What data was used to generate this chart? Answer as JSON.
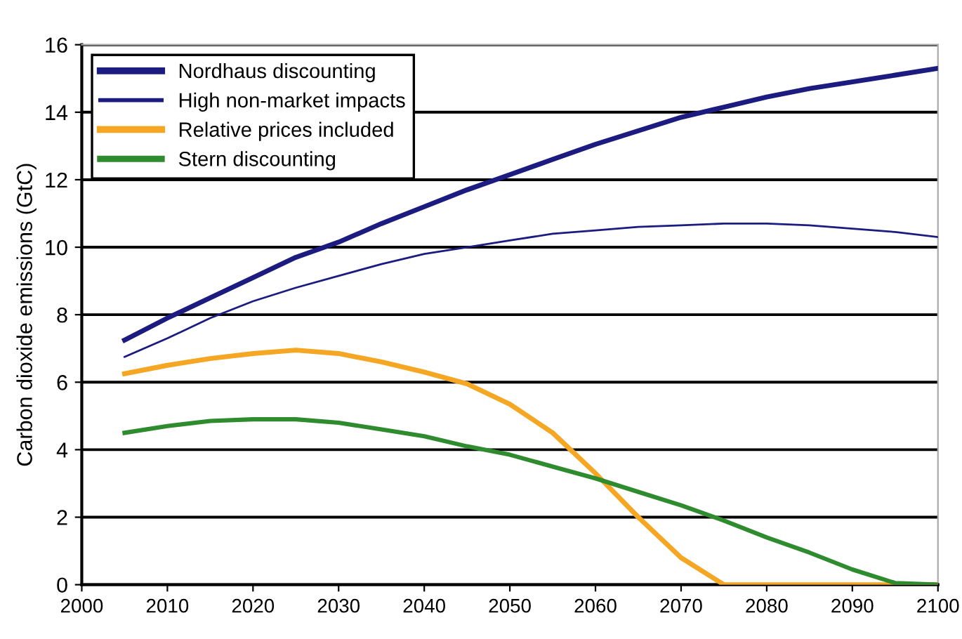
{
  "chart_data": {
    "type": "line",
    "ylabel": "Carbon dioxide emissions (GtC)",
    "x": [
      2005,
      2010,
      2015,
      2020,
      2025,
      2030,
      2035,
      2040,
      2045,
      2050,
      2055,
      2060,
      2065,
      2070,
      2075,
      2080,
      2085,
      2090,
      2095,
      2100
    ],
    "series": [
      {
        "name": "Nordhaus discounting",
        "color": "#1c1c80",
        "values": [
          7.25,
          7.9,
          8.5,
          9.1,
          9.7,
          10.15,
          10.7,
          11.2,
          11.7,
          12.15,
          12.6,
          13.05,
          13.45,
          13.85,
          14.15,
          14.45,
          14.7,
          14.9,
          15.1,
          15.3
        ]
      },
      {
        "name": "High non-market impacts",
        "color": "#1c1c80",
        "values": [
          6.75,
          7.3,
          7.9,
          8.4,
          8.8,
          9.15,
          9.5,
          9.8,
          10.0,
          10.2,
          10.4,
          10.5,
          10.6,
          10.65,
          10.7,
          10.7,
          10.65,
          10.55,
          10.45,
          10.3
        ]
      },
      {
        "name": "Relative prices included",
        "color": "#f5a623",
        "values": [
          6.25,
          6.5,
          6.7,
          6.85,
          6.95,
          6.85,
          6.6,
          6.3,
          5.95,
          5.35,
          4.5,
          3.3,
          2.0,
          0.8,
          0.0,
          0.0,
          0.0,
          0.0,
          0.0,
          0.0
        ]
      },
      {
        "name": "Stern discounting",
        "color": "#2e8b2e",
        "values": [
          4.5,
          4.7,
          4.85,
          4.9,
          4.9,
          4.8,
          4.6,
          4.4,
          4.1,
          3.85,
          3.5,
          3.15,
          2.75,
          2.35,
          1.9,
          1.4,
          0.95,
          0.45,
          0.05,
          0.0
        ]
      }
    ],
    "xlim": [
      2000,
      2100
    ],
    "xticks": [
      2000,
      2010,
      2020,
      2030,
      2040,
      2050,
      2060,
      2070,
      2080,
      2090,
      2100
    ],
    "ylim": [
      0,
      16
    ],
    "yticks": [
      0,
      2,
      4,
      6,
      8,
      10,
      12,
      14,
      16
    ],
    "grid": "y",
    "legend": "top left",
    "marker": "none",
    "line_style": "solid"
  }
}
